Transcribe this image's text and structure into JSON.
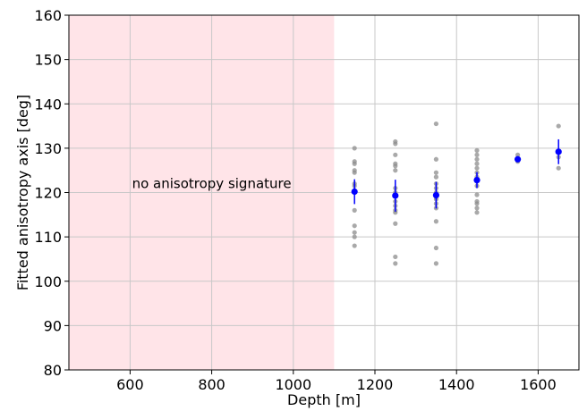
{
  "chart_data": {
    "type": "scatter",
    "xlabel": "Depth [m]",
    "ylabel": "Fitted anisotropy axis [deg]",
    "xlim": [
      450,
      1700
    ],
    "ylim": [
      80,
      160
    ],
    "x_ticks": [
      600,
      800,
      1000,
      1200,
      1400,
      1600
    ],
    "y_ticks": [
      80,
      90,
      100,
      110,
      120,
      130,
      140,
      150,
      160
    ],
    "grid": true,
    "shaded_region": {
      "x_range": [
        450,
        1100
      ],
      "color": "#ffe4e8"
    },
    "annotation": {
      "text": "no anisotropy signature",
      "x": 800,
      "y": 121
    },
    "series": [
      {
        "kind": "individual",
        "color": "#8c8c8c",
        "points": [
          [
            1150,
            130.0
          ],
          [
            1150,
            127.0
          ],
          [
            1150,
            126.5
          ],
          [
            1150,
            125.0
          ],
          [
            1150,
            124.5
          ],
          [
            1150,
            122.0
          ],
          [
            1150,
            121.5
          ],
          [
            1150,
            120.0
          ],
          [
            1150,
            116.0
          ],
          [
            1150,
            112.5
          ],
          [
            1150,
            111.0
          ],
          [
            1150,
            110.0
          ],
          [
            1150,
            108.0
          ],
          [
            1250,
            131.5
          ],
          [
            1250,
            131.0
          ],
          [
            1250,
            128.5
          ],
          [
            1250,
            126.5
          ],
          [
            1250,
            126.0
          ],
          [
            1250,
            125.0
          ],
          [
            1250,
            121.0
          ],
          [
            1250,
            120.0
          ],
          [
            1250,
            119.5
          ],
          [
            1250,
            118.0
          ],
          [
            1250,
            117.0
          ],
          [
            1250,
            116.0
          ],
          [
            1250,
            115.5
          ],
          [
            1250,
            113.0
          ],
          [
            1250,
            105.5
          ],
          [
            1250,
            104.0
          ],
          [
            1350,
            135.5
          ],
          [
            1350,
            127.5
          ],
          [
            1350,
            124.5
          ],
          [
            1350,
            123.5
          ],
          [
            1350,
            122.0
          ],
          [
            1350,
            121.0
          ],
          [
            1350,
            120.0
          ],
          [
            1350,
            119.0
          ],
          [
            1350,
            118.5
          ],
          [
            1350,
            117.5
          ],
          [
            1350,
            116.5
          ],
          [
            1350,
            113.5
          ],
          [
            1350,
            107.5
          ],
          [
            1350,
            104.0
          ],
          [
            1450,
            129.5
          ],
          [
            1450,
            128.5
          ],
          [
            1450,
            127.5
          ],
          [
            1450,
            126.5
          ],
          [
            1450,
            125.5
          ],
          [
            1450,
            124.5
          ],
          [
            1450,
            123.5
          ],
          [
            1450,
            122.5
          ],
          [
            1450,
            121.5
          ],
          [
            1450,
            119.5
          ],
          [
            1450,
            118.0
          ],
          [
            1450,
            117.5
          ],
          [
            1450,
            116.5
          ],
          [
            1450,
            115.5
          ],
          [
            1550,
            128.5
          ],
          [
            1550,
            127.5
          ],
          [
            1550,
            127.0
          ],
          [
            1650,
            135.0
          ],
          [
            1650,
            128.0
          ],
          [
            1650,
            125.5
          ]
        ]
      },
      {
        "kind": "mean",
        "color": "#0000ff",
        "points": [
          {
            "x": 1150,
            "y": 120.2,
            "err": 2.8
          },
          {
            "x": 1250,
            "y": 119.3,
            "err": 3.6
          },
          {
            "x": 1350,
            "y": 119.4,
            "err": 3.0
          },
          {
            "x": 1450,
            "y": 122.8,
            "err": 1.8
          },
          {
            "x": 1550,
            "y": 127.5,
            "err": 0.6
          },
          {
            "x": 1650,
            "y": 129.2,
            "err": 2.8
          }
        ]
      }
    ]
  }
}
